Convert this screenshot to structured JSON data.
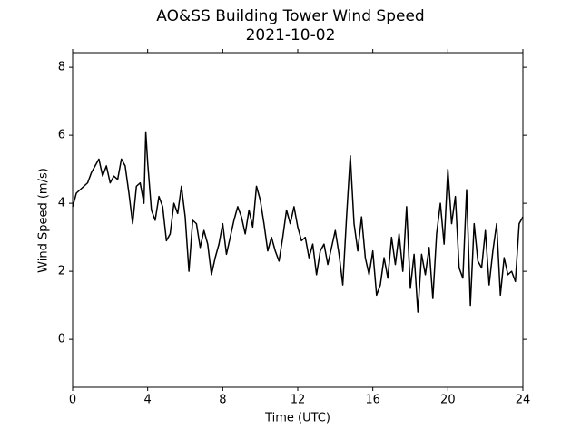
{
  "chart_data": {
    "type": "line",
    "title": "AO&SS Building Tower Wind Speed",
    "subtitle": "2021-10-02",
    "x_label": "Time (UTC)",
    "y_label": "Wind Speed (m/s)",
    "x": [
      0,
      0.2,
      0.4,
      0.6,
      0.8,
      1.0,
      1.2,
      1.4,
      1.6,
      1.8,
      2.0,
      2.2,
      2.4,
      2.6,
      2.8,
      3.0,
      3.2,
      3.4,
      3.6,
      3.8,
      3.9,
      4.0,
      4.2,
      4.4,
      4.6,
      4.8,
      5.0,
      5.2,
      5.4,
      5.6,
      5.8,
      6.0,
      6.2,
      6.4,
      6.6,
      6.8,
      7.0,
      7.2,
      7.4,
      7.6,
      7.8,
      8.0,
      8.2,
      8.4,
      8.6,
      8.8,
      9.0,
      9.2,
      9.4,
      9.6,
      9.8,
      10.0,
      10.2,
      10.4,
      10.6,
      10.8,
      11.0,
      11.2,
      11.4,
      11.6,
      11.8,
      12.0,
      12.2,
      12.4,
      12.6,
      12.8,
      13.0,
      13.2,
      13.4,
      13.6,
      13.8,
      14.0,
      14.2,
      14.4,
      14.6,
      14.8,
      15.0,
      15.2,
      15.4,
      15.6,
      15.8,
      16.0,
      16.2,
      16.4,
      16.6,
      16.8,
      17.0,
      17.2,
      17.4,
      17.6,
      17.8,
      18.0,
      18.2,
      18.4,
      18.6,
      18.8,
      19.0,
      19.2,
      19.4,
      19.6,
      19.8,
      20.0,
      20.2,
      20.4,
      20.6,
      20.8,
      21.0,
      21.2,
      21.4,
      21.6,
      21.8,
      22.0,
      22.2,
      22.4,
      22.6,
      22.8,
      23.0,
      23.2,
      23.4,
      23.6,
      23.8,
      24.0
    ],
    "series": [
      {
        "name": "Wind Speed",
        "color": "#000000",
        "values": [
          3.9,
          4.3,
          4.4,
          4.5,
          4.6,
          4.9,
          5.1,
          5.3,
          4.8,
          5.1,
          4.6,
          4.8,
          4.7,
          5.3,
          5.1,
          4.3,
          3.4,
          4.5,
          4.6,
          4.0,
          6.1,
          5.2,
          3.8,
          3.5,
          4.2,
          3.9,
          2.9,
          3.1,
          4.0,
          3.7,
          4.5,
          3.6,
          2.0,
          3.5,
          3.4,
          2.7,
          3.2,
          2.8,
          1.9,
          2.4,
          2.8,
          3.4,
          2.5,
          3.0,
          3.5,
          3.9,
          3.6,
          3.1,
          3.8,
          3.3,
          4.5,
          4.1,
          3.4,
          2.6,
          3.0,
          2.6,
          2.3,
          3.0,
          3.8,
          3.4,
          3.9,
          3.3,
          2.9,
          3.0,
          2.4,
          2.8,
          1.9,
          2.6,
          2.8,
          2.2,
          2.7,
          3.2,
          2.5,
          1.6,
          3.6,
          5.4,
          3.4,
          2.6,
          3.6,
          2.4,
          1.9,
          2.6,
          1.3,
          1.6,
          2.4,
          1.8,
          3.0,
          2.2,
          3.1,
          2.0,
          3.9,
          1.5,
          2.5,
          0.8,
          2.5,
          1.9,
          2.7,
          1.2,
          3.1,
          4.0,
          2.8,
          5.0,
          3.4,
          4.2,
          2.1,
          1.8,
          4.4,
          1.0,
          3.4,
          2.3,
          2.1,
          3.2,
          1.6,
          2.6,
          3.4,
          1.3,
          2.4,
          1.9,
          2.0,
          1.7,
          3.4,
          3.6
        ]
      }
    ],
    "xlim": [
      0,
      24
    ],
    "xticks": [
      0,
      4,
      8,
      12,
      16,
      20,
      24
    ],
    "ylim": [
      -1.41,
      8.43
    ],
    "yticks": [
      0,
      2,
      4,
      6,
      8
    ]
  }
}
